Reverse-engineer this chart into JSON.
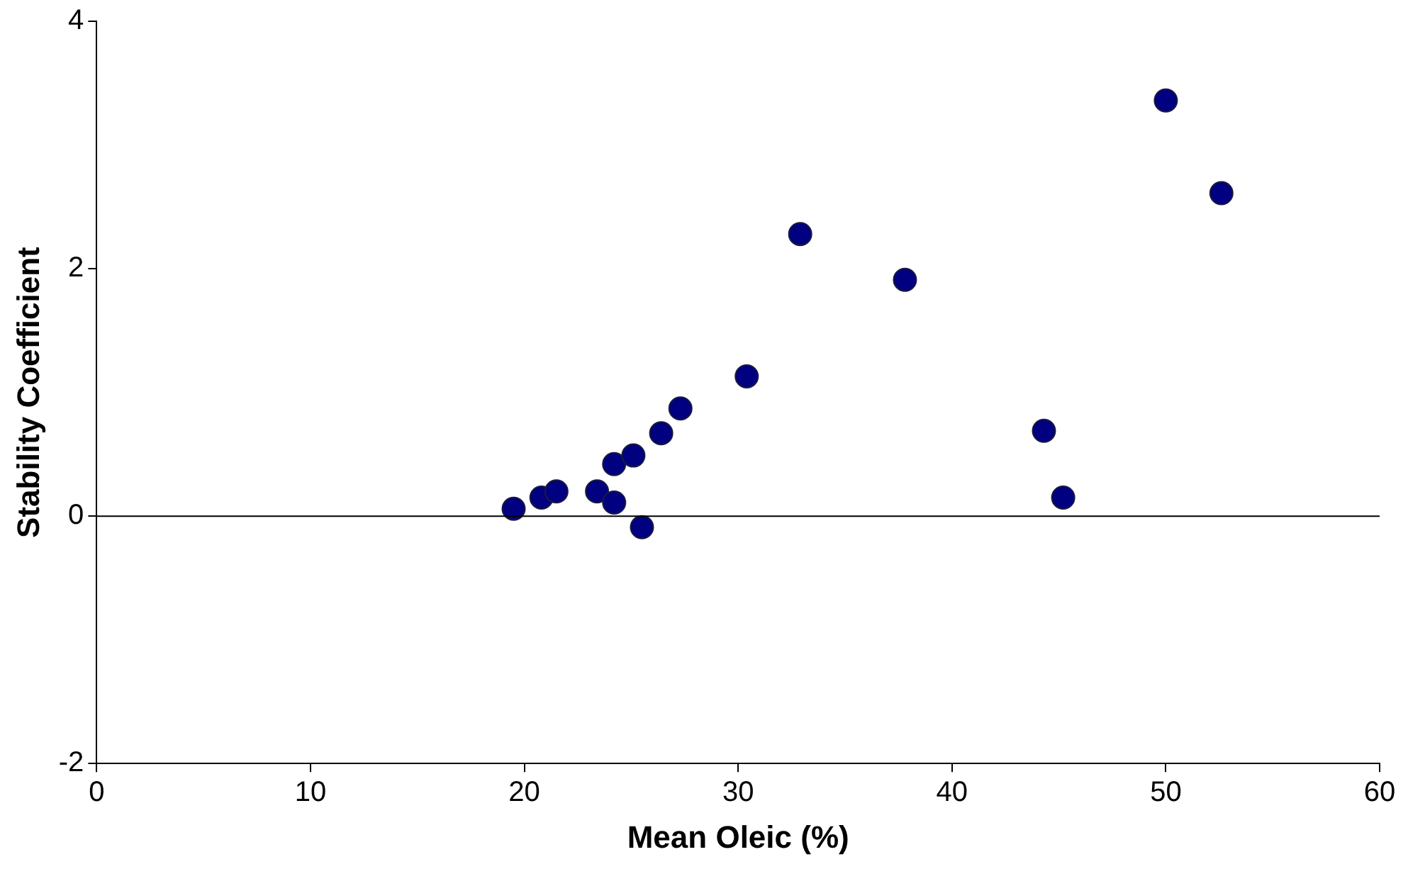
{
  "chart_data": {
    "type": "scatter",
    "xlabel": "Mean Oleic (%)",
    "ylabel": "Stability Coefficient",
    "x": [
      19.5,
      20.8,
      21.5,
      23.4,
      24.2,
      24.2,
      25.1,
      25.5,
      26.4,
      27.3,
      30.4,
      32.9,
      37.8,
      44.3,
      45.2,
      50.0,
      52.6
    ],
    "series": [
      {
        "color": "#000080",
        "values": [
          0.06,
          0.15,
          0.2,
          0.2,
          0.42,
          0.11,
          0.49,
          -0.09,
          0.67,
          0.87,
          1.13,
          2.28,
          1.91,
          0.69,
          0.15,
          3.36,
          2.61
        ]
      }
    ],
    "xlim": [
      0,
      60
    ],
    "xticks": [
      0,
      10,
      20,
      30,
      40,
      50,
      60
    ],
    "ylim": [
      -2,
      4
    ],
    "yticks": [
      -2,
      0,
      2,
      4
    ],
    "ref_lines": [
      {
        "axis": "y",
        "value": 0,
        "color": "#000000"
      }
    ],
    "grid": false,
    "legend": false,
    "marker": "circle"
  }
}
